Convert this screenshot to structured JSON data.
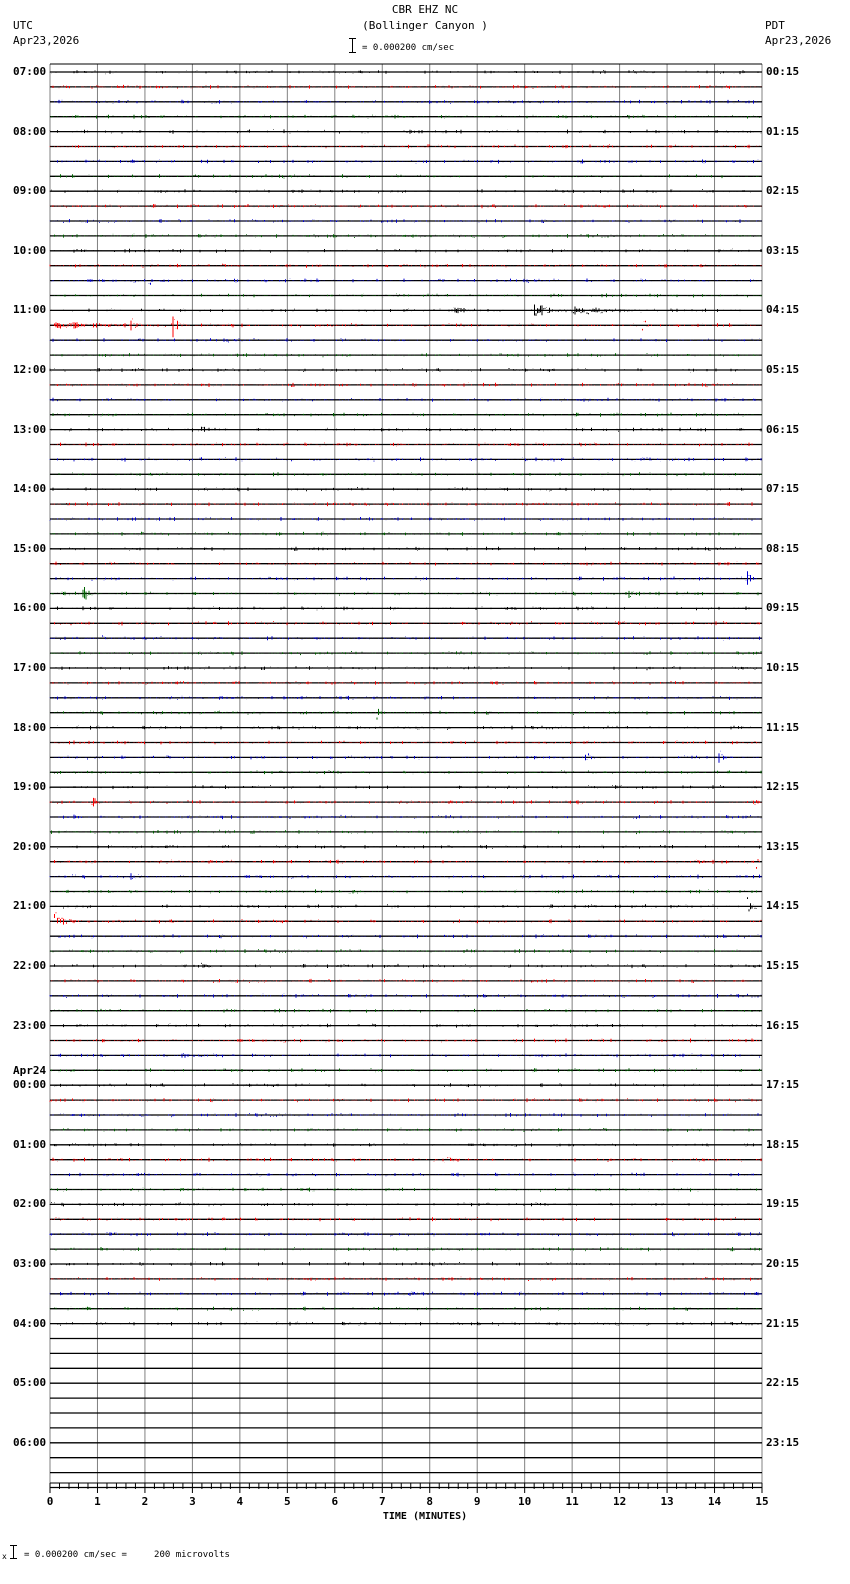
{
  "header": {
    "station": "CBR EHZ NC",
    "location": "(Bollinger Canyon )",
    "left_tz": "UTC",
    "left_date": "Apr23,2026",
    "right_tz": "PDT",
    "right_date": "Apr23,2026",
    "scale_text": "= 0.000200 cm/sec"
  },
  "footer": {
    "scale_text": "= 0.000200 cm/sec =     200 microvolts",
    "scale_prefix": "x"
  },
  "colors": {
    "trace_cycle": [
      "#000000",
      "#ff0000",
      "#0000d0",
      "#006400"
    ],
    "grid": "#808080",
    "baseline": "#000000"
  },
  "chart_data": {
    "type": "line",
    "title": "CBR EHZ NC (Bollinger Canyon )",
    "subtitle": "Helicorder seismogram, 15-minute traces, 0.000200 cm/sec scale",
    "xlabel": "TIME (MINUTES)",
    "ylabel": "",
    "xlim": [
      0,
      15
    ],
    "x_ticks": [
      0,
      1,
      2,
      3,
      4,
      5,
      6,
      7,
      8,
      9,
      10,
      11,
      12,
      13,
      14,
      15
    ],
    "x_minor_step": 0.2,
    "grid": true,
    "traces_per_hour": 4,
    "trace_count": 96,
    "recorded_trace_count": 85,
    "utc_labels": [
      {
        "row": 0,
        "text": "07:00"
      },
      {
        "row": 4,
        "text": "08:00"
      },
      {
        "row": 8,
        "text": "09:00"
      },
      {
        "row": 12,
        "text": "10:00"
      },
      {
        "row": 16,
        "text": "11:00"
      },
      {
        "row": 20,
        "text": "12:00"
      },
      {
        "row": 24,
        "text": "13:00"
      },
      {
        "row": 28,
        "text": "14:00"
      },
      {
        "row": 32,
        "text": "15:00"
      },
      {
        "row": 36,
        "text": "16:00"
      },
      {
        "row": 40,
        "text": "17:00"
      },
      {
        "row": 44,
        "text": "18:00"
      },
      {
        "row": 48,
        "text": "19:00"
      },
      {
        "row": 52,
        "text": "20:00"
      },
      {
        "row": 56,
        "text": "21:00"
      },
      {
        "row": 60,
        "text": "22:00"
      },
      {
        "row": 64,
        "text": "23:00"
      },
      {
        "row": 68,
        "text": "00:00",
        "date": "Apr24"
      },
      {
        "row": 72,
        "text": "01:00"
      },
      {
        "row": 76,
        "text": "02:00"
      },
      {
        "row": 80,
        "text": "03:00"
      },
      {
        "row": 84,
        "text": "04:00"
      },
      {
        "row": 88,
        "text": "05:00"
      },
      {
        "row": 92,
        "text": "06:00"
      }
    ],
    "pdt_labels": [
      {
        "row": 0,
        "text": "00:15"
      },
      {
        "row": 4,
        "text": "01:15"
      },
      {
        "row": 8,
        "text": "02:15"
      },
      {
        "row": 12,
        "text": "03:15"
      },
      {
        "row": 16,
        "text": "04:15"
      },
      {
        "row": 20,
        "text": "05:15"
      },
      {
        "row": 24,
        "text": "06:15"
      },
      {
        "row": 28,
        "text": "07:15"
      },
      {
        "row": 32,
        "text": "08:15"
      },
      {
        "row": 36,
        "text": "09:15"
      },
      {
        "row": 40,
        "text": "10:15"
      },
      {
        "row": 44,
        "text": "11:15"
      },
      {
        "row": 48,
        "text": "12:15"
      },
      {
        "row": 52,
        "text": "13:15"
      },
      {
        "row": 56,
        "text": "14:15"
      },
      {
        "row": 60,
        "text": "15:15"
      },
      {
        "row": 64,
        "text": "16:15"
      },
      {
        "row": 68,
        "text": "17:15"
      },
      {
        "row": 72,
        "text": "18:15"
      },
      {
        "row": 76,
        "text": "19:15"
      },
      {
        "row": 80,
        "text": "20:15"
      },
      {
        "row": 84,
        "text": "21:15"
      },
      {
        "row": 88,
        "text": "22:15"
      },
      {
        "row": 92,
        "text": "23:15"
      }
    ],
    "events": [
      {
        "row": 4,
        "minute": 7.6,
        "amp": 6,
        "dur": 0.05
      },
      {
        "row": 14,
        "minute": 2.1,
        "amp": 8,
        "dur": 0.1
      },
      {
        "row": 15,
        "minute": 7.3,
        "amp": 5,
        "dur": 0.1
      },
      {
        "row": 16,
        "minute": 8.5,
        "amp": 9,
        "dur": 0.6
      },
      {
        "row": 16,
        "minute": 10.2,
        "amp": 11,
        "dur": 1.0
      },
      {
        "row": 16,
        "minute": 11.0,
        "amp": 6,
        "dur": 2.5
      },
      {
        "row": 17,
        "minute": 0.1,
        "amp": 6,
        "dur": 3.2
      },
      {
        "row": 17,
        "minute": 1.7,
        "amp": 14,
        "dur": 0.3
      },
      {
        "row": 17,
        "minute": 2.6,
        "amp": 16,
        "dur": 0.3
      },
      {
        "row": 17,
        "minute": 12.5,
        "amp": 9,
        "dur": 0.25
      },
      {
        "row": 20,
        "minute": 13.5,
        "amp": 4,
        "dur": 0.05
      },
      {
        "row": 24,
        "minute": 3.2,
        "amp": 5,
        "dur": 0.4
      },
      {
        "row": 28,
        "minute": 9.5,
        "amp": 3,
        "dur": 0.5
      },
      {
        "row": 29,
        "minute": 1.9,
        "amp": 5,
        "dur": 0.05
      },
      {
        "row": 29,
        "minute": 6.4,
        "amp": 4,
        "dur": 0.1
      },
      {
        "row": 35,
        "minute": 0.7,
        "amp": 10,
        "dur": 0.4
      },
      {
        "row": 35,
        "minute": 3.0,
        "amp": 5,
        "dur": 0.2
      },
      {
        "row": 35,
        "minute": 12.2,
        "amp": 9,
        "dur": 0.3
      },
      {
        "row": 34,
        "minute": 14.7,
        "amp": 11,
        "dur": 0.2
      },
      {
        "row": 37,
        "minute": 2.5,
        "amp": 5,
        "dur": 0.05
      },
      {
        "row": 38,
        "minute": 1.1,
        "amp": 6,
        "dur": 0.3
      },
      {
        "row": 43,
        "minute": 6.9,
        "amp": 9,
        "dur": 0.25
      },
      {
        "row": 46,
        "minute": 10.2,
        "amp": 3,
        "dur": 0.7
      },
      {
        "row": 46,
        "minute": 11.3,
        "amp": 7,
        "dur": 0.25
      },
      {
        "row": 46,
        "minute": 14.1,
        "amp": 11,
        "dur": 0.3
      },
      {
        "row": 49,
        "minute": 0.9,
        "amp": 8,
        "dur": 0.4
      },
      {
        "row": 49,
        "minute": 14.8,
        "amp": 6,
        "dur": 0.3
      },
      {
        "row": 50,
        "minute": 0.5,
        "amp": 3,
        "dur": 0.6
      },
      {
        "row": 53,
        "minute": 13.6,
        "amp": 4,
        "dur": 0.8
      },
      {
        "row": 53,
        "minute": 14.9,
        "amp": 9,
        "dur": 0.1
      },
      {
        "row": 54,
        "minute": 1.7,
        "amp": 6,
        "dur": 0.6
      },
      {
        "row": 55,
        "minute": 6.3,
        "amp": 5,
        "dur": 0.5
      },
      {
        "row": 55,
        "minute": 7.2,
        "amp": 5,
        "dur": 0.15
      },
      {
        "row": 56,
        "minute": 14.7,
        "amp": 11,
        "dur": 0.35
      },
      {
        "row": 57,
        "minute": 0.1,
        "amp": 14,
        "dur": 0.6
      },
      {
        "row": 60,
        "minute": 3.2,
        "amp": 4,
        "dur": 0.8
      },
      {
        "row": 66,
        "minute": 2.8,
        "amp": 3,
        "dur": 1.8
      },
      {
        "row": 73,
        "minute": 8.3,
        "amp": 4,
        "dur": 0.8
      },
      {
        "row": 79,
        "minute": 12.0,
        "amp": 4,
        "dur": 0.4
      },
      {
        "row": 82,
        "minute": 7.6,
        "amp": 6,
        "dur": 0.6
      },
      {
        "row": 83,
        "minute": 0.8,
        "amp": 5,
        "dur": 0.1
      }
    ]
  }
}
